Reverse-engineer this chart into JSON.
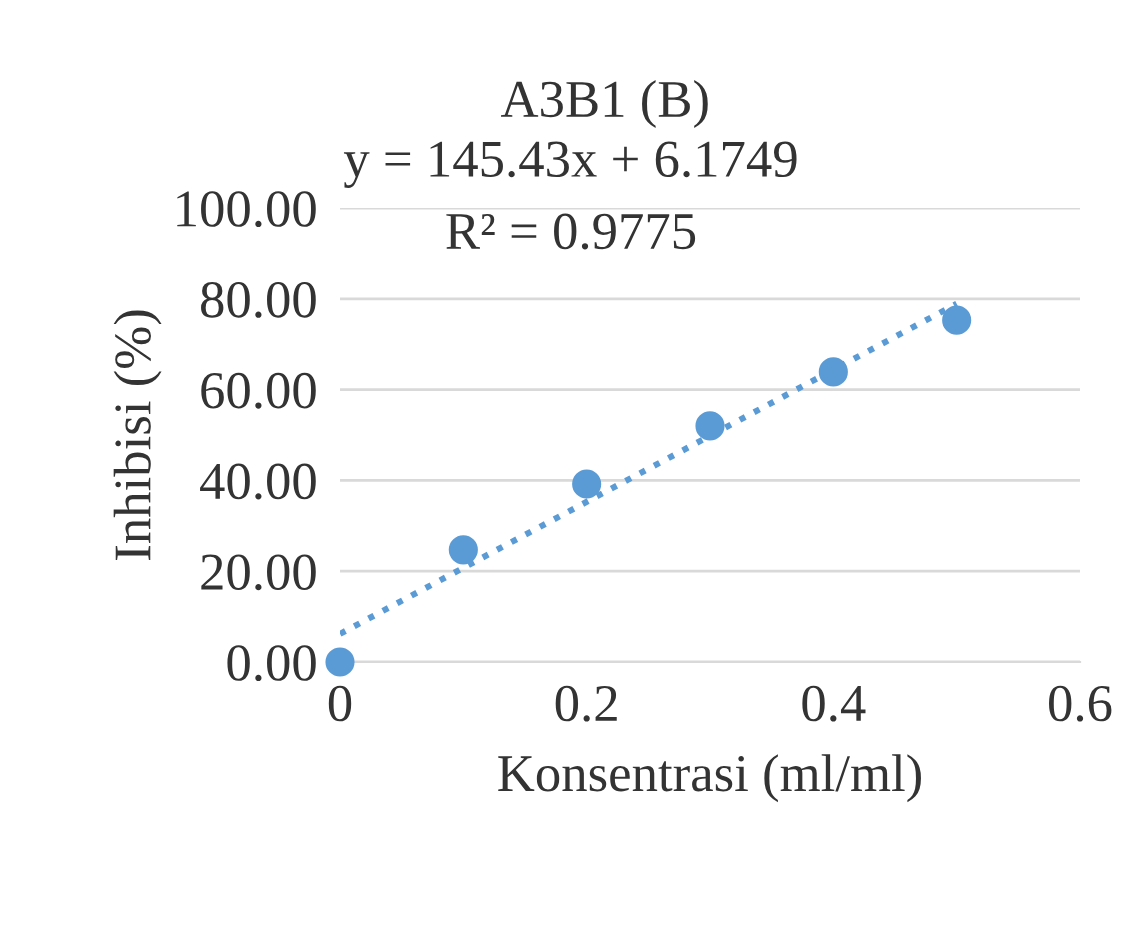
{
  "chart_data": {
    "type": "scatter",
    "title": "A3B1 (B)",
    "xlabel": "Konsentrasi (ml/ml)",
    "ylabel": "Inhibisi (%)",
    "annotations": [
      "y = 145.43x + 6.1749",
      "R² = 0.9775"
    ],
    "series": [
      {
        "color": "#5b9bd5",
        "x": [
          0,
          0.1,
          0.2,
          0.3,
          0.4,
          0.5
        ],
        "values": [
          0,
          24.7,
          39.2,
          52,
          63.9,
          75.3
        ],
        "marker": "circle"
      },
      {
        "type": "line",
        "color": "#5b9bd5",
        "x": [
          0,
          0.5
        ],
        "values": [
          6.2,
          78.9
        ],
        "line_style": "dotted",
        "marker": "none"
      }
    ],
    "xlim": [
      0,
      0.6
    ],
    "xticks": [
      0,
      0.2,
      0.4,
      0.6
    ],
    "ylim": [
      0,
      100
    ],
    "yticks": [
      {
        "value": 0,
        "label": "0.00"
      },
      {
        "value": 20,
        "label": "20.00"
      },
      {
        "value": 40,
        "label": "40.00"
      },
      {
        "value": 60,
        "label": "60.00"
      },
      {
        "value": 80,
        "label": "80.00"
      },
      {
        "value": 100,
        "label": "100.00"
      }
    ],
    "grid": "y",
    "legend": false
  }
}
